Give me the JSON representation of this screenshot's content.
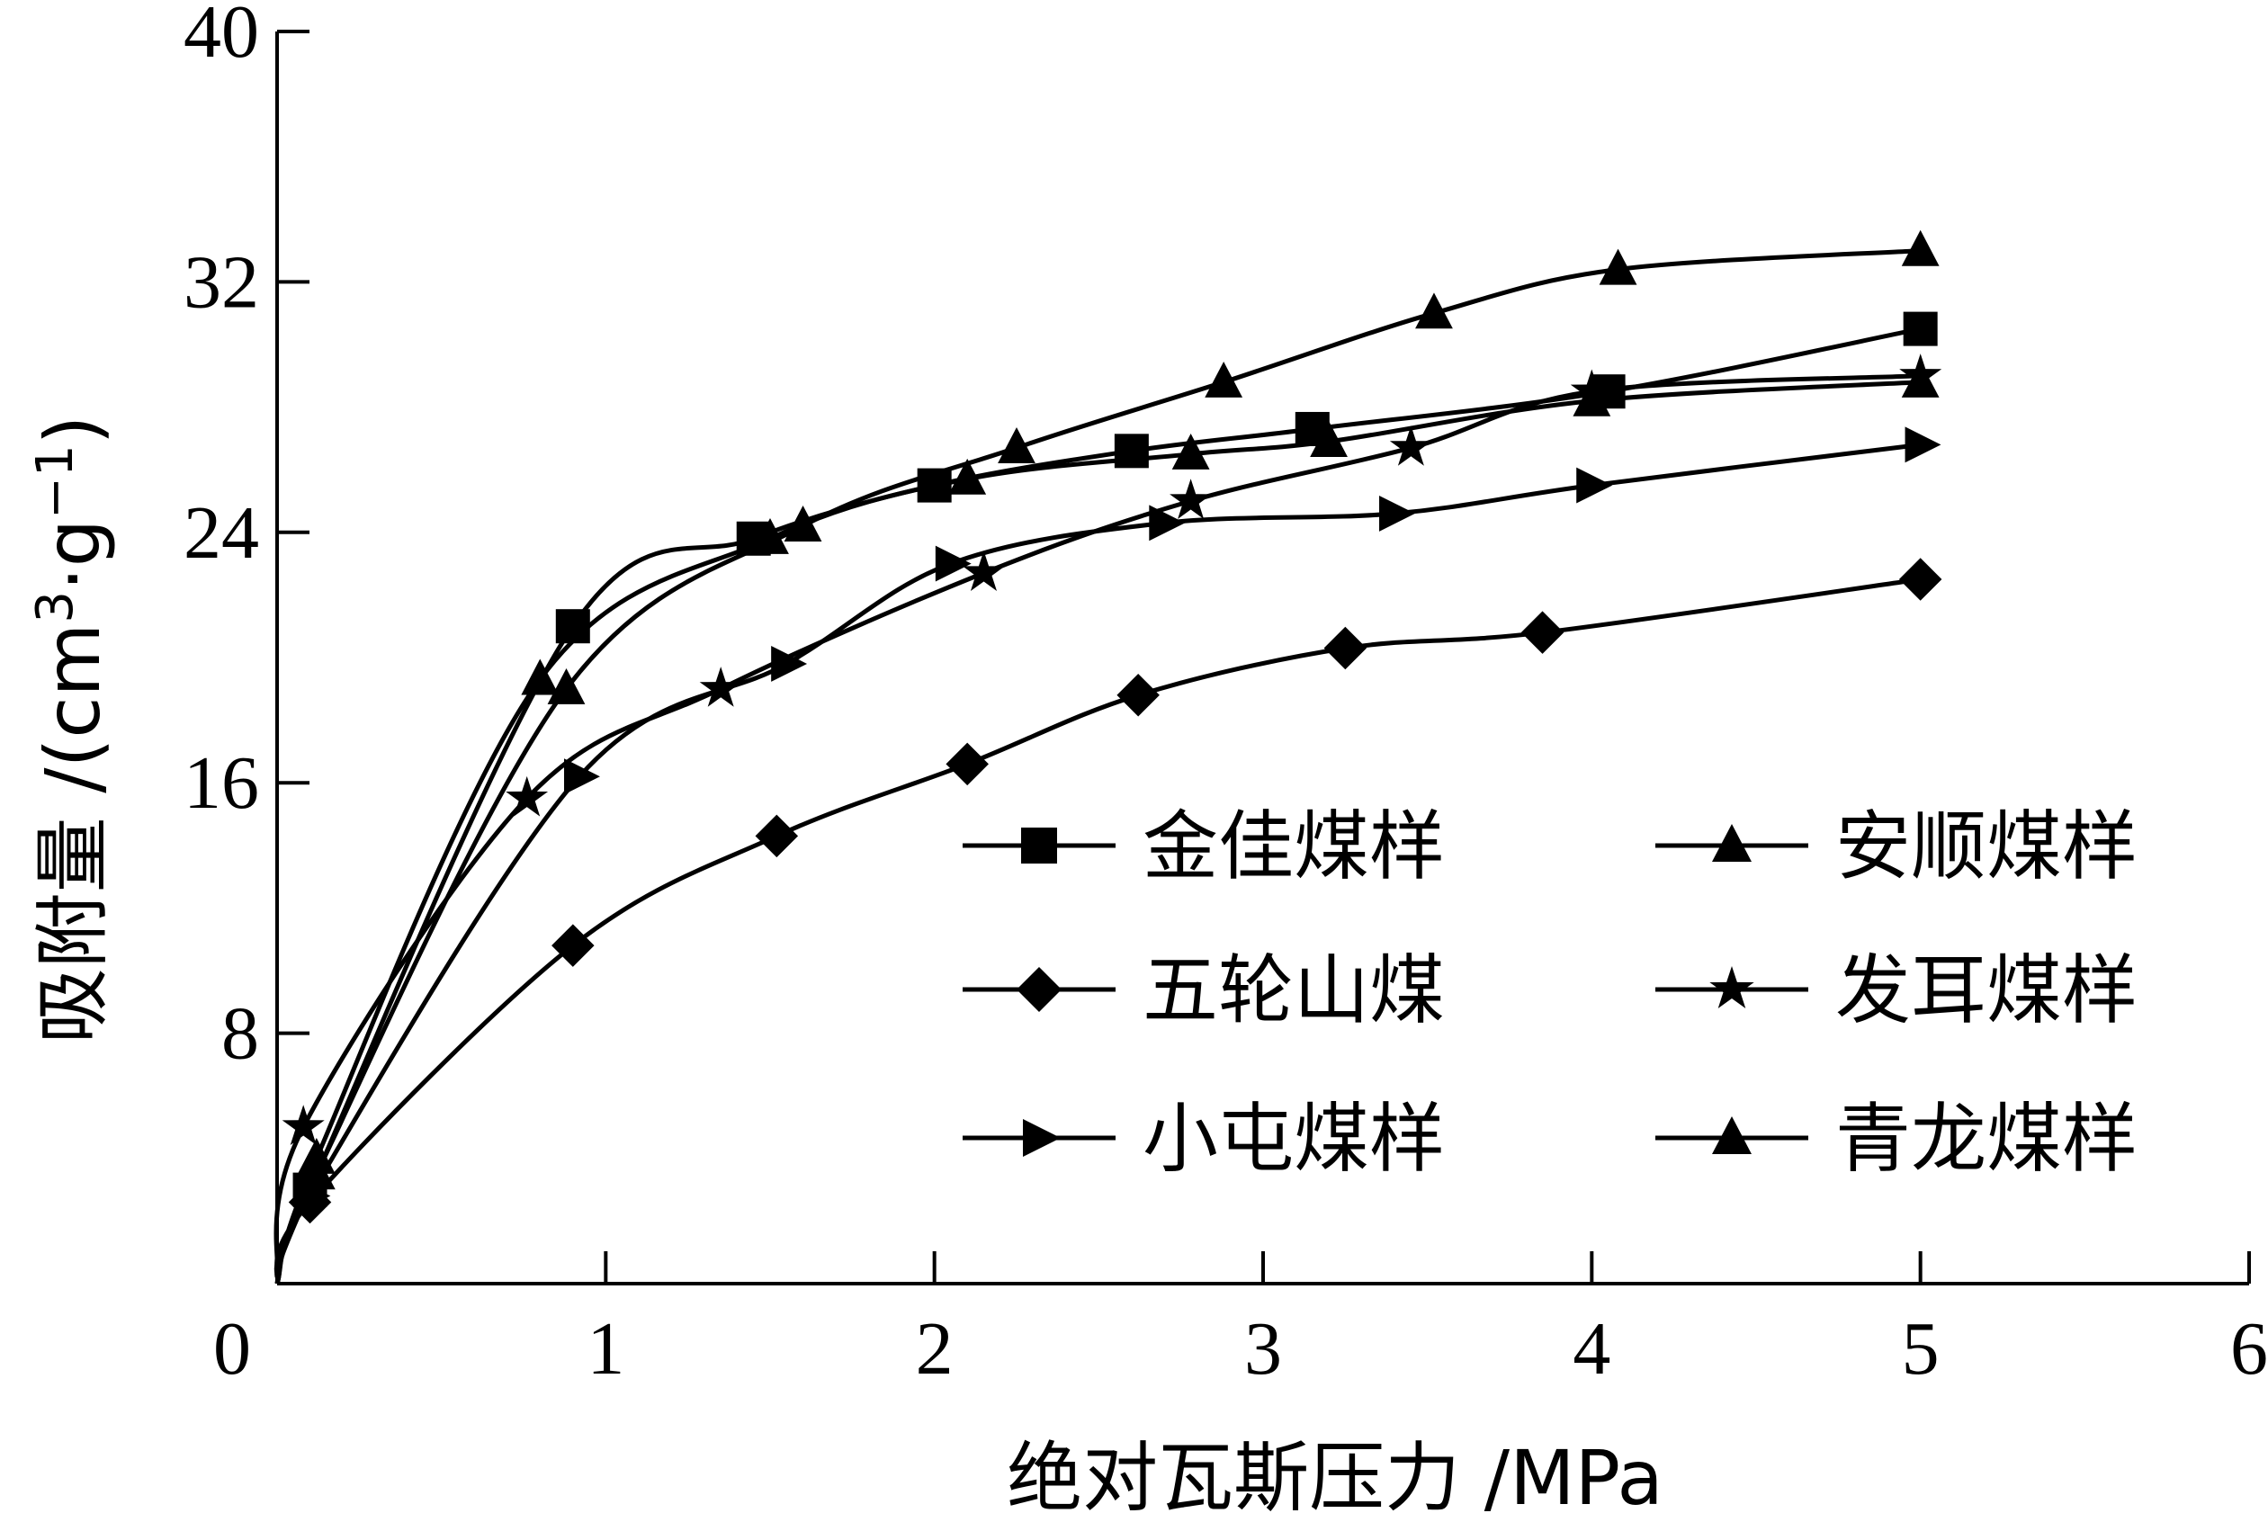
{
  "chart_data": {
    "type": "line",
    "xlabel": "绝对瓦斯压力 /MPa",
    "ylabel_prefix": "吸附量 /(cm",
    "ylabel_sup1": "3",
    "ylabel_mid": "·g",
    "ylabel_sup2": "−1",
    "ylabel_suffix": ")",
    "xlim": [
      0,
      6
    ],
    "ylim": [
      0,
      40
    ],
    "x_ticks": [
      0,
      1,
      2,
      3,
      4,
      5,
      6
    ],
    "y_ticks": [
      0,
      8,
      16,
      24,
      32,
      40
    ],
    "x_tick_labels": [
      "0",
      "1",
      "2",
      "3",
      "4",
      "5",
      "6"
    ],
    "y_tick_labels": [
      "",
      "8",
      "16",
      "24",
      "32",
      "40"
    ],
    "origin_label": "0",
    "grid": false,
    "legend_position": "lower-right",
    "series": [
      {
        "name": "金佳煤样",
        "marker": "square",
        "x": [
          0.1,
          0.9,
          1.45,
          2.0,
          2.6,
          3.15,
          4.05,
          5.0
        ],
        "y": [
          3.0,
          21.0,
          23.8,
          25.5,
          26.6,
          27.3,
          28.5,
          30.5
        ]
      },
      {
        "name": "五轮山煤",
        "marker": "diamond",
        "x": [
          0.1,
          0.9,
          1.52,
          2.1,
          2.62,
          3.25,
          3.85,
          5.0
        ],
        "y": [
          2.6,
          10.8,
          14.3,
          16.6,
          18.8,
          20.3,
          20.8,
          22.5
        ]
      },
      {
        "name": "小屯煤样",
        "marker": "triangle-right",
        "x": [
          0.1,
          0.92,
          1.55,
          2.05,
          2.7,
          3.4,
          4.0,
          5.0
        ],
        "y": [
          2.8,
          16.2,
          19.8,
          23.0,
          24.3,
          24.6,
          25.5,
          26.8
        ]
      },
      {
        "name": "安顺煤样",
        "marker": "triangle-up",
        "x": [
          0.12,
          0.88,
          1.6,
          2.25,
          2.88,
          3.52,
          4.08,
          5.0
        ],
        "y": [
          3.5,
          19.0,
          24.2,
          26.7,
          28.8,
          31.0,
          32.4,
          33.0
        ]
      },
      {
        "name": "发耳煤样",
        "marker": "star",
        "x": [
          0.08,
          0.76,
          1.35,
          2.15,
          2.78,
          3.45,
          4.0,
          5.0
        ],
        "y": [
          5.0,
          15.5,
          19.0,
          22.7,
          25.0,
          26.7,
          28.5,
          29.0
        ]
      },
      {
        "name": "青龙煤样",
        "marker": "triangle-up",
        "x": [
          0.12,
          0.8,
          1.5,
          2.1,
          2.78,
          3.2,
          4.0,
          5.0
        ],
        "y": [
          4.0,
          19.3,
          23.8,
          25.7,
          26.5,
          26.9,
          28.2,
          28.8
        ]
      }
    ]
  }
}
